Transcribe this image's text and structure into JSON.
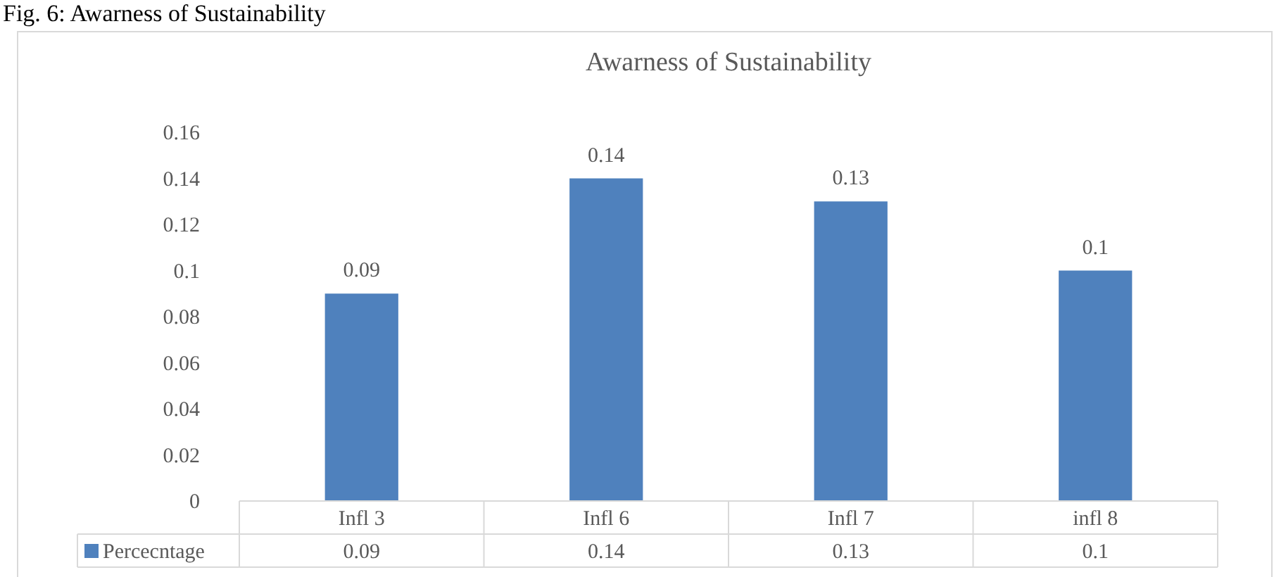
{
  "chart_data": {
    "type": "bar",
    "title": "Awarness of Sustainability",
    "annotations": [
      "Fig. 6:  Awarness of Sustainability",
      "0.09",
      "0.14",
      "0.13",
      "0.1"
    ],
    "categories": [
      "Infl 3",
      "Infl 6",
      "Infl 7",
      "infl 8"
    ],
    "series": [
      {
        "name": "Percecntage",
        "color": "#4f81bd",
        "values": [
          0.09,
          0.14,
          0.13,
          0.1
        ]
      }
    ],
    "ylim": [
      0,
      0.16
    ],
    "yticks": [
      0,
      0.02,
      0.04,
      0.06,
      0.08,
      0.1,
      0.12,
      0.14,
      0.16
    ],
    "grid": false,
    "data_labels": true,
    "legend": "bottom"
  }
}
